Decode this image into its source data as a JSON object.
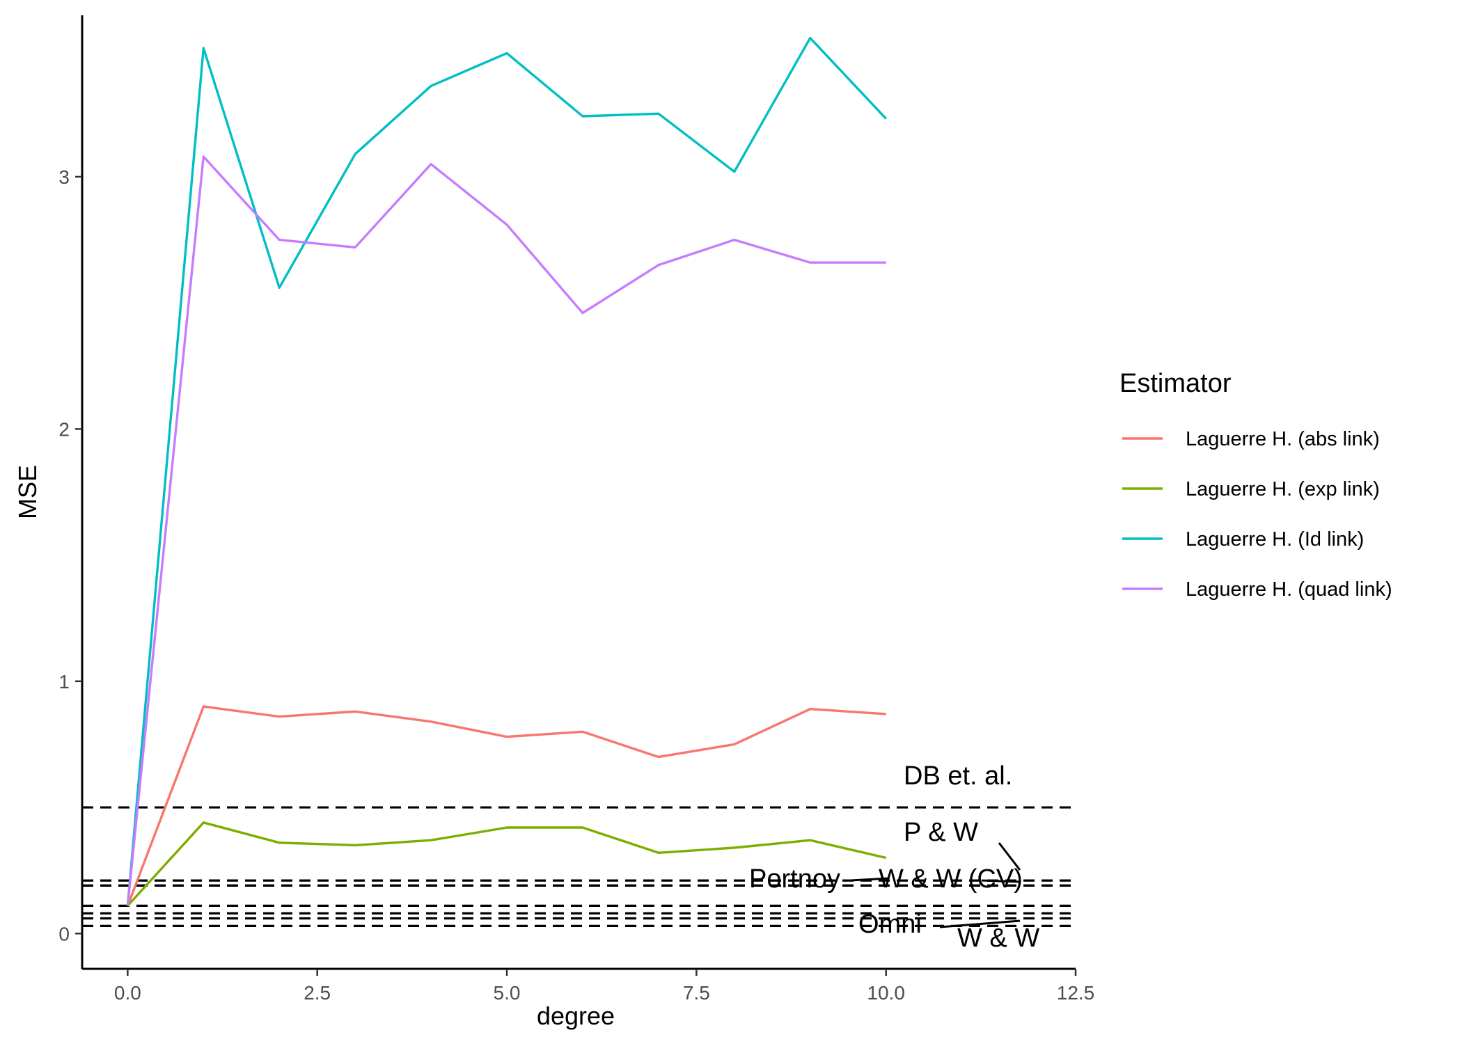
{
  "chart_data": {
    "type": "line",
    "title": "",
    "xlabel": "degree",
    "ylabel": "MSE",
    "xlim": [
      -0.6,
      12.5
    ],
    "ylim": [
      -0.14,
      3.64
    ],
    "xticks": [
      0.0,
      2.5,
      5.0,
      7.5,
      10.0,
      12.5
    ],
    "xtick_labels": [
      "0.0",
      "2.5",
      "5.0",
      "7.5",
      "10.0",
      "12.5"
    ],
    "yticks": [
      0,
      1,
      2,
      3
    ],
    "ytick_labels": [
      "0",
      "1",
      "2",
      "3"
    ],
    "grid": false,
    "legend": {
      "title": "Estimator",
      "placement": "right"
    },
    "x": [
      0,
      1,
      2,
      3,
      4,
      5,
      6,
      7,
      8,
      9,
      10
    ],
    "series": [
      {
        "name": "Laguerre H. (abs link)",
        "color": "#F8766D",
        "values": [
          0.11,
          0.9,
          0.86,
          0.88,
          0.84,
          0.78,
          0.8,
          0.7,
          0.75,
          0.89,
          0.87
        ]
      },
      {
        "name": "Laguerre H. (exp link)",
        "color": "#7CAE00",
        "values": [
          0.11,
          0.44,
          0.36,
          0.35,
          0.37,
          0.42,
          0.42,
          0.32,
          0.34,
          0.37,
          0.3
        ]
      },
      {
        "name": "Laguerre H. (Id link)",
        "color": "#00BFC4",
        "values": [
          0.11,
          3.51,
          2.56,
          3.09,
          3.36,
          3.49,
          3.24,
          3.25,
          3.02,
          3.55,
          3.23
        ]
      },
      {
        "name": "Laguerre H. (quad link)",
        "color": "#C77CFF",
        "values": [
          0.11,
          3.08,
          2.75,
          2.72,
          3.05,
          2.81,
          2.46,
          2.65,
          2.75,
          2.66,
          2.66
        ]
      }
    ],
    "reference_lines": [
      {
        "label": "DB et. al.",
        "y": 0.5
      },
      {
        "label": "P & W",
        "y": 0.21
      },
      {
        "label": "W & W (CV)",
        "y": 0.19
      },
      {
        "label": "Portnoy",
        "y": 0.19
      },
      {
        "label": "Omni",
        "y": 0.11
      },
      {
        "label": "W & W",
        "y": 0.08
      },
      {
        "label": "",
        "y": 0.06
      },
      {
        "label": "",
        "y": 0.03
      }
    ]
  }
}
